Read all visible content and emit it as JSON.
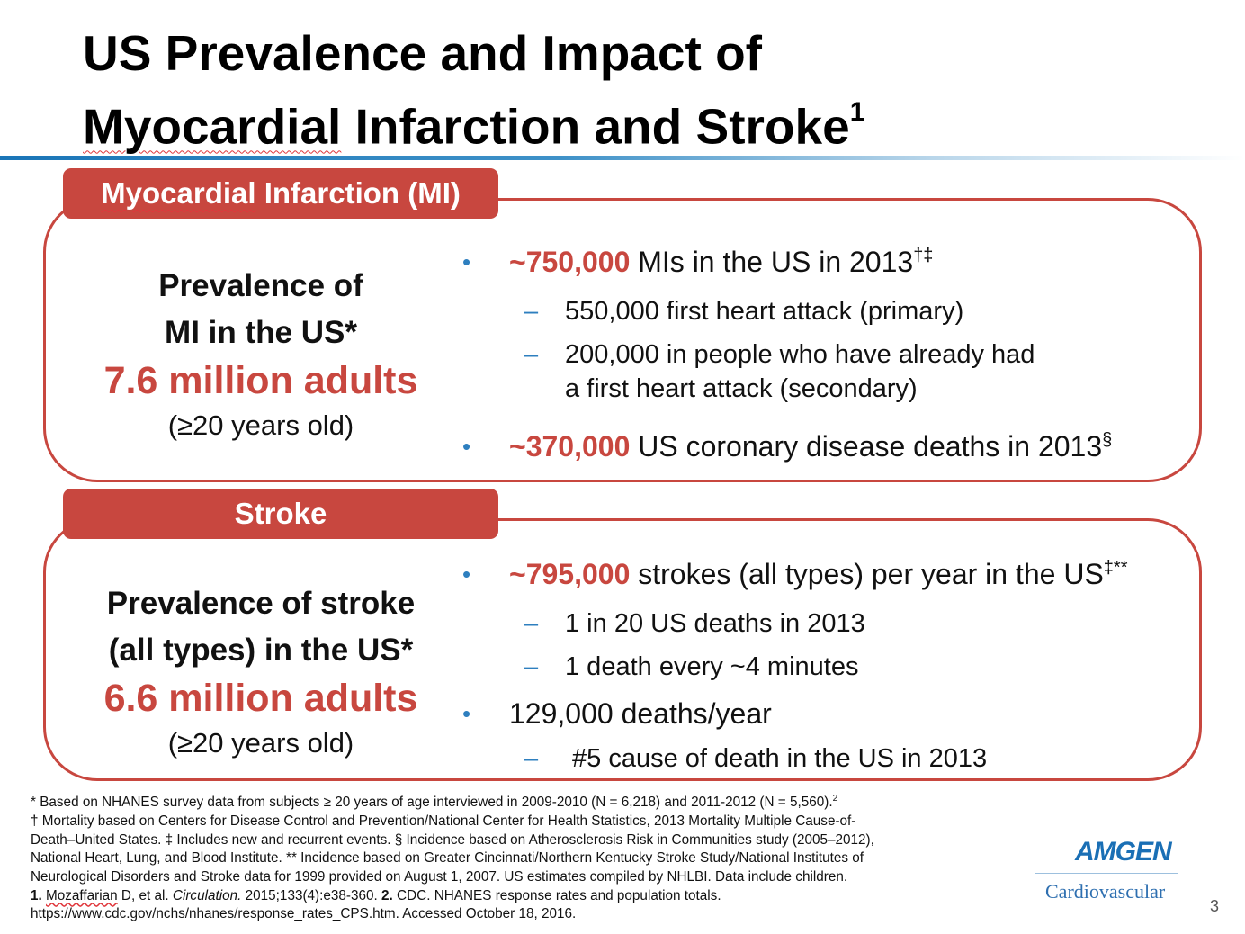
{
  "slide": {
    "title_line1": "US Prevalence and Impact of",
    "title_line2_word1": "Myocardial",
    "title_line2_rest": " Infarction and Stroke",
    "title_sup": "1",
    "page_number": "3"
  },
  "mi": {
    "tab_word1": "Myocardial",
    "tab_rest": " Infarction (MI)",
    "prev_line1": "Prevalence of",
    "prev_line2": "MI in the US*",
    "prev_value": "7.6 million adults",
    "prev_age": "(≥20 years old)",
    "b1_hl": "~750,000",
    "b1_text": " MIs in the US in 2013",
    "b1_sup": "†‡",
    "b1_sub1": "550,000 first heart attack (primary)",
    "b1_sub2_line1": "200,000 in people who have already had",
    "b1_sub2_line2": "a first heart attack (secondary)",
    "b2_hl": "~370,000",
    "b2_text": " US coronary disease deaths in 2013",
    "b2_sup": "§"
  },
  "stroke": {
    "tab": "Stroke",
    "prev_line1": "Prevalence of stroke",
    "prev_line2": "(all types) in the US*",
    "prev_value": "6.6 million adults",
    "prev_age": "(≥20 years old)",
    "b1_hl": "~795,000",
    "b1_text": " strokes (all types) per year in the US",
    "b1_sup": "‡**",
    "b1_sub1": "1 in 20 US deaths in 2013",
    "b1_sub2": "1 death every ~4 minutes",
    "b2_text": "129,000 deaths/year",
    "b2_sub1": "#5 cause of death in the US in 2013"
  },
  "footnotes": {
    "l1": "* Based on NHANES survey data from subjects ≥ 20 years of age interviewed in 2009-2010 (N = 6,218) and 2011-2012 (N = 5,560).",
    "l1_sup": "2",
    "l2": "† Mortality based on Centers for Disease Control and Prevention/National Center for Health Statistics, 2013 Mortality Multiple Cause-of-",
    "l3": "Death–United States. ‡ Includes new and recurrent events. § Incidence based on Atherosclerosis Risk in Communities study (2005–2012),",
    "l4": "National Heart, Lung, and Blood Institute. ** Incidence based on Greater Cincinnati/Northern Kentucky Stroke Study/National Institutes of",
    "l5": "Neurological Disorders and Stroke data for 1999 provided on August 1, 2007. US estimates compiled by NHLBI. Data include children.",
    "l6_num1": "1.",
    "l6_author": "Mozaffarian",
    "l6_mid": " D, et al. ",
    "l6_journal": "Circulation.",
    "l6_cite": " 2015;133(4):e38-360. ",
    "l6_num2": "2.",
    "l6_end": " CDC. NHANES response rates and population totals.",
    "l7": "https://www.cdc.gov/nchs/nhanes/response_rates_CPS.htm. Accessed October 18, 2016."
  },
  "logo": {
    "brand": "AMGEN",
    "division": "Cardiovascular"
  },
  "colors": {
    "accent_red": "#c8473f",
    "bullet_blue": "#2e7fbf",
    "rule_blue": "#1a75b7"
  }
}
